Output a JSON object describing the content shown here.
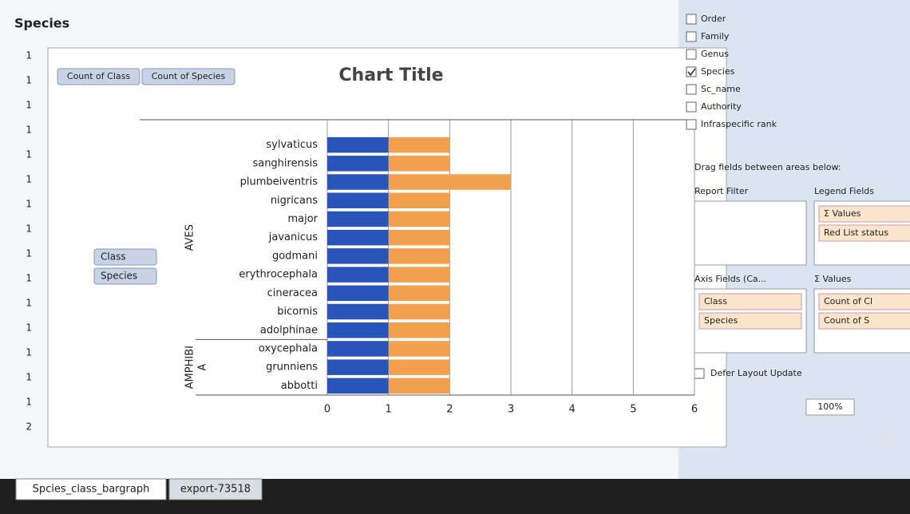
{
  "sheet": {
    "header": "Species",
    "column_a": [
      1,
      1,
      1,
      1,
      1,
      1,
      1,
      1,
      1,
      1,
      1,
      1,
      1,
      1,
      1,
      2
    ],
    "tabs": [
      "Spcies_class_bargraph",
      "export-73518"
    ]
  },
  "chart_data": {
    "type": "bar",
    "orientation": "horizontal",
    "stacked": true,
    "title": "Chart Title",
    "axis_buttons": [
      "Class",
      "Species"
    ],
    "groups": [
      {
        "lines": [
          "AVES"
        ],
        "start": 0,
        "end": 10
      },
      {
        "lines": [
          "AMPHIBI",
          "A"
        ],
        "start": 11,
        "end": 13
      }
    ],
    "categories": [
      "sylvaticus",
      "sanghirensis",
      "plumbeiventris",
      "nigricans",
      "major",
      "javanicus",
      "godmani",
      "erythrocephala",
      "cineracea",
      "bicornis",
      "adolphinae",
      "oxycephala",
      "grunniens",
      "abbotti"
    ],
    "series": [
      {
        "name": "Count of Class",
        "color": "#2a55b8",
        "values": [
          1,
          1,
          1,
          1,
          1,
          1,
          1,
          1,
          1,
          1,
          1,
          1,
          1,
          1
        ]
      },
      {
        "name": "Count of Species",
        "color": "#f2a04e",
        "values": [
          1,
          1,
          2,
          1,
          1,
          1,
          1,
          1,
          1,
          1,
          1,
          1,
          1,
          1
        ]
      }
    ],
    "xlim": [
      0,
      6
    ],
    "xticks": [
      0,
      1,
      2,
      3,
      4,
      5,
      6
    ],
    "grid": true
  },
  "field_list": {
    "fields": [
      {
        "label": "Order",
        "checked": false
      },
      {
        "label": "Family",
        "checked": false
      },
      {
        "label": "Genus",
        "checked": false
      },
      {
        "label": "Species",
        "checked": true
      },
      {
        "label": "Sc_name",
        "checked": false
      },
      {
        "label": "Authority",
        "checked": false
      },
      {
        "label": "Infraspecific rank",
        "checked": false
      }
    ],
    "instruction": "Drag fields between areas below:",
    "areas": [
      {
        "title": "Report Filter",
        "items": []
      },
      {
        "title": "Legend Fields",
        "items": [
          "Σ Values",
          "Red List status"
        ]
      },
      {
        "title": "Axis Fields (Ca...",
        "items": [
          "Class",
          "Species"
        ]
      },
      {
        "title": "Σ Values",
        "items": [
          "Count of Cl",
          "Count of S"
        ]
      }
    ],
    "defer": "Defer Layout Update"
  },
  "status": {
    "zoom": "100%",
    "language": "IND"
  }
}
